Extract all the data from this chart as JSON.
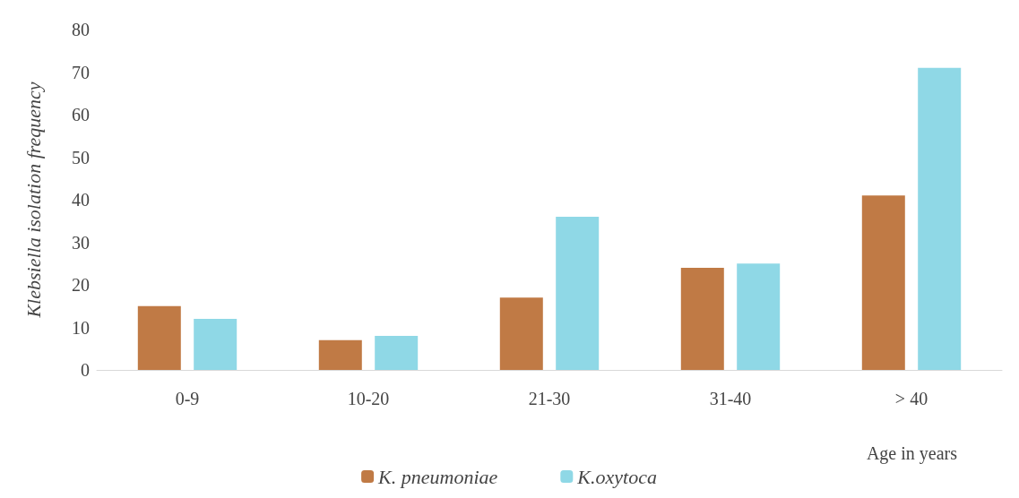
{
  "chart_data": {
    "type": "bar",
    "xlabel": "Age in years",
    "ylabel": "Klebsiella isolation frequency",
    "categories": [
      "0-9",
      "10-20",
      "21-30",
      "31-40",
      "> 40"
    ],
    "series": [
      {
        "name": "K. pneumoniae",
        "color": "#c07a45",
        "values": [
          15,
          7,
          17,
          24,
          41
        ]
      },
      {
        "name": "K.oxytoca",
        "color": "#8fd8e6",
        "values": [
          12,
          8,
          36,
          25,
          71
        ]
      }
    ],
    "ylim": [
      0,
      80
    ],
    "yticks": [
      0,
      10,
      20,
      30,
      40,
      50,
      60,
      70,
      80
    ],
    "grid": false,
    "legend": "bottom"
  }
}
